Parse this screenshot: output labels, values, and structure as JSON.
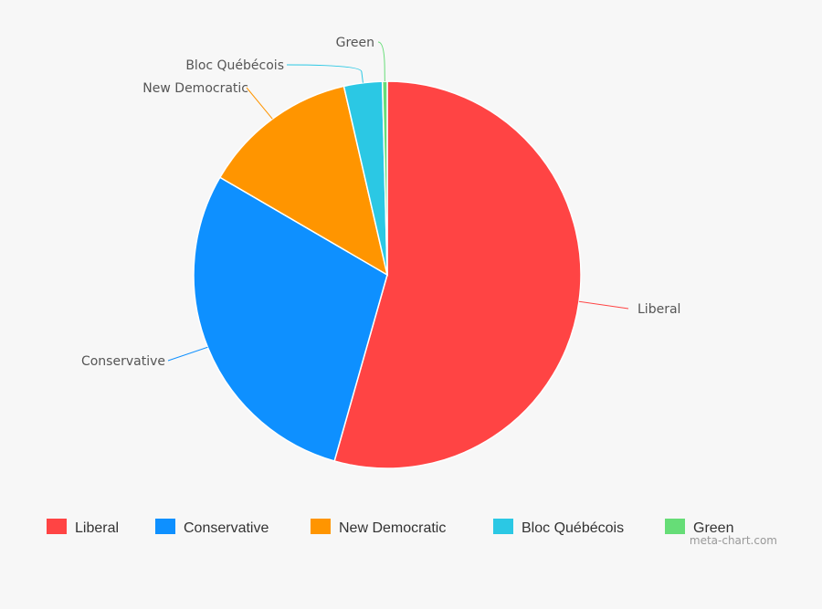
{
  "chart_data": {
    "type": "pie",
    "slices": [
      {
        "label": "Liberal",
        "value": 54.4,
        "color": "#ff4444"
      },
      {
        "label": "Conservative",
        "value": 29.0,
        "color": "#0e90ff"
      },
      {
        "label": "New Democratic",
        "value": 13.0,
        "color": "#ff9500"
      },
      {
        "label": "Bloc Québécois",
        "value": 3.2,
        "color": "#2bc8e4"
      },
      {
        "label": "Green",
        "value": 0.4,
        "color": "#66dd77"
      }
    ],
    "legend_position": "bottom",
    "start_angle": "top",
    "direction": "clockwise"
  },
  "watermark": "meta-chart.com"
}
